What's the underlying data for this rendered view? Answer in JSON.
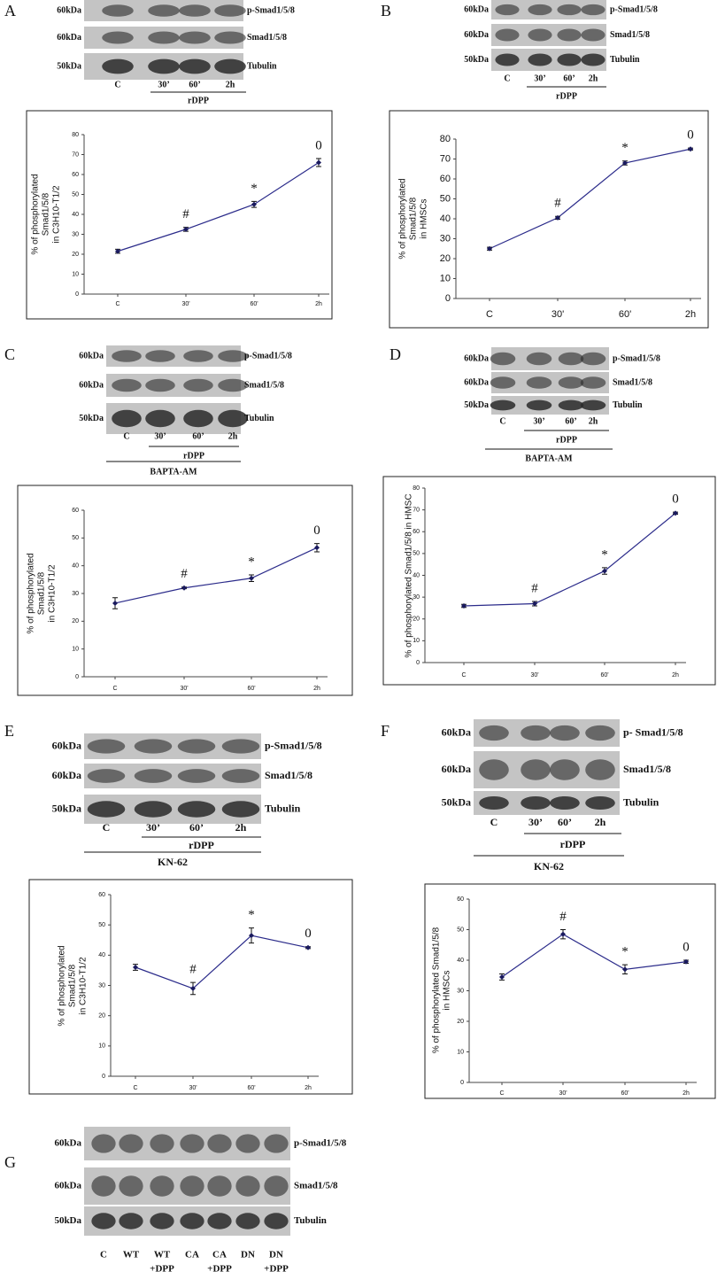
{
  "chart_data": [
    {
      "type": "line",
      "ylabel": [
        "% of phosphorylated",
        "Smad1/5/8",
        "in C3H10-T1/2"
      ],
      "categories": [
        "C",
        "30'",
        "60'",
        "2h"
      ],
      "values": [
        21.5,
        32.5,
        45,
        66
      ],
      "errors": [
        1,
        1,
        1.5,
        2
      ],
      "annotations": [
        null,
        "#",
        "*",
        "0"
      ],
      "color": "#2b2b8a",
      "ylim": [
        0,
        80
      ],
      "yticks": [
        0,
        10,
        20,
        30,
        40,
        50,
        60,
        70,
        80
      ]
    },
    {
      "type": "line",
      "ylabel": [
        "% of phosphorylated",
        "Smad1/5/8",
        "in HMSCs"
      ],
      "categories": [
        "C",
        "30'",
        "60'",
        "2h"
      ],
      "values": [
        25,
        40.5,
        68,
        75
      ],
      "errors": [
        0.7,
        0.7,
        1,
        0.5
      ],
      "annotations": [
        null,
        "#",
        "*",
        "0"
      ],
      "color": "#2b2b8a",
      "ylim": [
        0,
        80
      ],
      "yticks": [
        0,
        10,
        20,
        30,
        40,
        50,
        60,
        70,
        80
      ]
    },
    {
      "type": "line",
      "ylabel": [
        "% of phosphorylated",
        "Smad1/5/8",
        "in C3H10-T1/2"
      ],
      "categories": [
        "C",
        "30'",
        "60'",
        "2h"
      ],
      "values": [
        26.5,
        32,
        35.5,
        46.5
      ],
      "errors": [
        2,
        0.3,
        1.2,
        1.5
      ],
      "annotations": [
        null,
        "#",
        "*",
        "0"
      ],
      "color": "#2b2b8a",
      "ylim": [
        0,
        60
      ],
      "yticks": [
        0,
        10,
        20,
        30,
        40,
        50,
        60
      ]
    },
    {
      "type": "line",
      "ylabel": [
        "% of phosphorylated Smad1/5/8 in HMSC"
      ],
      "categories": [
        "C",
        "30'",
        "60'",
        "2h"
      ],
      "values": [
        26,
        27,
        42,
        68.5
      ],
      "errors": [
        0.7,
        1,
        1.5,
        0.5
      ],
      "annotations": [
        null,
        "#",
        "*",
        "0"
      ],
      "color": "#2b2b8a",
      "ylim": [
        0,
        80
      ],
      "yticks": [
        0,
        10,
        20,
        30,
        40,
        50,
        60,
        70,
        80
      ]
    },
    {
      "type": "line",
      "ylabel": [
        "% of phosphorylated",
        "Smad1/5/8",
        "in C3H10-T1/2"
      ],
      "categories": [
        "C",
        "30'",
        "60'",
        "2h"
      ],
      "values": [
        36,
        29,
        46.5,
        42.5
      ],
      "errors": [
        1,
        2,
        2.5,
        0.3
      ],
      "annotations": [
        null,
        "#",
        "*",
        "0"
      ],
      "color": "#2b2b8a",
      "ylim": [
        0,
        60
      ],
      "yticks": [
        0,
        10,
        20,
        30,
        40,
        50,
        60
      ]
    },
    {
      "type": "line",
      "ylabel": [
        "% of phosphorylated Smad1/5/8",
        "in HMSCs"
      ],
      "categories": [
        "C",
        "30'",
        "60'",
        "2h"
      ],
      "values": [
        34.5,
        48.5,
        37,
        39.5
      ],
      "errors": [
        1,
        1.5,
        1.5,
        0.5
      ],
      "annotations": [
        null,
        "#",
        "*",
        "0"
      ],
      "color": "#2b2b8a",
      "ylim": [
        0,
        60
      ],
      "yticks": [
        0,
        10,
        20,
        30,
        40,
        50,
        60
      ]
    }
  ],
  "blots": [
    {
      "panel": "A",
      "rows": [
        {
          "mw": "60kDa",
          "name": "p-Smad1/5/8"
        },
        {
          "mw": "60kDa",
          "name": "Smad1/5/8"
        },
        {
          "mw": "50kDa",
          "name": "Tubulin"
        }
      ],
      "lanes": [
        [
          "C"
        ],
        [
          "30’"
        ],
        [
          "60’"
        ],
        [
          "2h"
        ]
      ],
      "treatment": "rDPP"
    },
    {
      "panel": "B",
      "rows": [
        {
          "mw": "60kDa",
          "name": "p-Smad1/5/8"
        },
        {
          "mw": "60kDa",
          "name": "Smad1/5/8"
        },
        {
          "mw": "50kDa",
          "name": "Tubulin"
        }
      ],
      "lanes": [
        [
          "C"
        ],
        [
          "30’"
        ],
        [
          "60’"
        ],
        [
          "2h"
        ]
      ],
      "treatment": "rDPP"
    },
    {
      "panel": "C",
      "rows": [
        {
          "mw": "60kDa",
          "name": "p-Smad1/5/8"
        },
        {
          "mw": "60kDa",
          "name": "Smad1/5/8"
        },
        {
          "mw": "50kDa",
          "name": "Tubulin"
        }
      ],
      "lanes": [
        [
          "C"
        ],
        [
          "30’"
        ],
        [
          "60’"
        ],
        [
          "2h"
        ]
      ],
      "treatment": "rDPP",
      "inhibitor": "BAPTA-AM"
    },
    {
      "panel": "D",
      "rows": [
        {
          "mw": "60kDa",
          "name": "p-Smad1/5/8"
        },
        {
          "mw": "60kDa",
          "name": "Smad1/5/8"
        },
        {
          "mw": "50kDa",
          "name": "Tubulin"
        }
      ],
      "lanes": [
        [
          "C"
        ],
        [
          "30’"
        ],
        [
          "60’"
        ],
        [
          "2h"
        ]
      ],
      "treatment": "rDPP",
      "inhibitor": "BAPTA-AM"
    },
    {
      "panel": "E",
      "rows": [
        {
          "mw": "60kDa",
          "name": "p-Smad1/5/8"
        },
        {
          "mw": "60kDa",
          "name": "Smad1/5/8"
        },
        {
          "mw": "50kDa",
          "name": "Tubulin"
        }
      ],
      "lanes": [
        [
          "C"
        ],
        [
          "30’"
        ],
        [
          "60’"
        ],
        [
          "2h"
        ]
      ],
      "treatment": "rDPP",
      "inhibitor": "KN-62"
    },
    {
      "panel": "F",
      "rows": [
        {
          "mw": "60kDa",
          "name": "p- Smad1/5/8"
        },
        {
          "mw": "60kDa",
          "name": "Smad1/5/8"
        },
        {
          "mw": "50kDa",
          "name": "Tubulin"
        }
      ],
      "lanes": [
        [
          "C"
        ],
        [
          "30’"
        ],
        [
          "60’"
        ],
        [
          "2h"
        ]
      ],
      "treatment": "rDPP",
      "inhibitor": "KN-62"
    },
    {
      "panel": "G",
      "rows": [
        {
          "mw": "60kDa",
          "name": "p-Smad1/5/8"
        },
        {
          "mw": "60kDa",
          "name": "Smad1/5/8"
        },
        {
          "mw": "50kDa",
          "name": "Tubulin"
        }
      ],
      "lanes": [
        [
          "C"
        ],
        [
          "WT"
        ],
        [
          "WT",
          "+DPP"
        ],
        [
          "CA"
        ],
        [
          "CA",
          "+DPP"
        ],
        [
          "DN"
        ],
        [
          "DN",
          "+DPP"
        ]
      ]
    }
  ]
}
